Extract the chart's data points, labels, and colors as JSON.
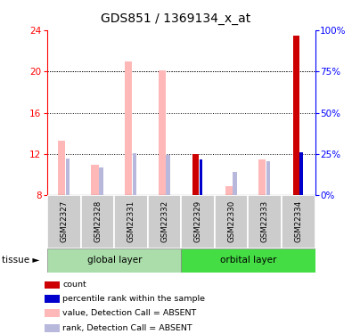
{
  "title": "GDS851 / 1369134_x_at",
  "samples": [
    "GSM22327",
    "GSM22328",
    "GSM22331",
    "GSM22332",
    "GSM22329",
    "GSM22330",
    "GSM22333",
    "GSM22334"
  ],
  "ylim": [
    8,
    24
  ],
  "yticks": [
    8,
    12,
    16,
    20,
    24
  ],
  "y2_ticks": [
    0,
    25,
    50,
    75,
    100
  ],
  "color_count": "#cc0000",
  "color_rank": "#0000cc",
  "color_value_absent": "#ffb8b8",
  "color_rank_absent": "#b8b8dd",
  "color_global": "#aaddaa",
  "color_orbital": "#44dd44",
  "bars": [
    {
      "value_absent": 13.3,
      "rank_absent": 11.6,
      "count": null,
      "rank": null
    },
    {
      "value_absent": 11.0,
      "rank_absent": 10.7,
      "count": null,
      "rank": null
    },
    {
      "value_absent": 21.0,
      "rank_absent": 12.1,
      "count": null,
      "rank": null
    },
    {
      "value_absent": 20.1,
      "rank_absent": 11.9,
      "count": null,
      "rank": null
    },
    {
      "value_absent": null,
      "rank_absent": null,
      "count": 12.0,
      "rank": 11.5
    },
    {
      "value_absent": 8.9,
      "rank_absent": 10.3,
      "count": null,
      "rank": null
    },
    {
      "value_absent": 11.5,
      "rank_absent": 11.3,
      "count": null,
      "rank": null
    },
    {
      "value_absent": null,
      "rank_absent": null,
      "count": 23.5,
      "rank": 12.2
    }
  ],
  "legend_items": [
    {
      "color": "#cc0000",
      "label": "count"
    },
    {
      "color": "#0000cc",
      "label": "percentile rank within the sa mple"
    },
    {
      "color": "#ffb8b8",
      "label": "value, Detection Call = ABSENT"
    },
    {
      "color": "#b8b8dd",
      "label": "rank, Detection Call = ABSENT"
    }
  ]
}
